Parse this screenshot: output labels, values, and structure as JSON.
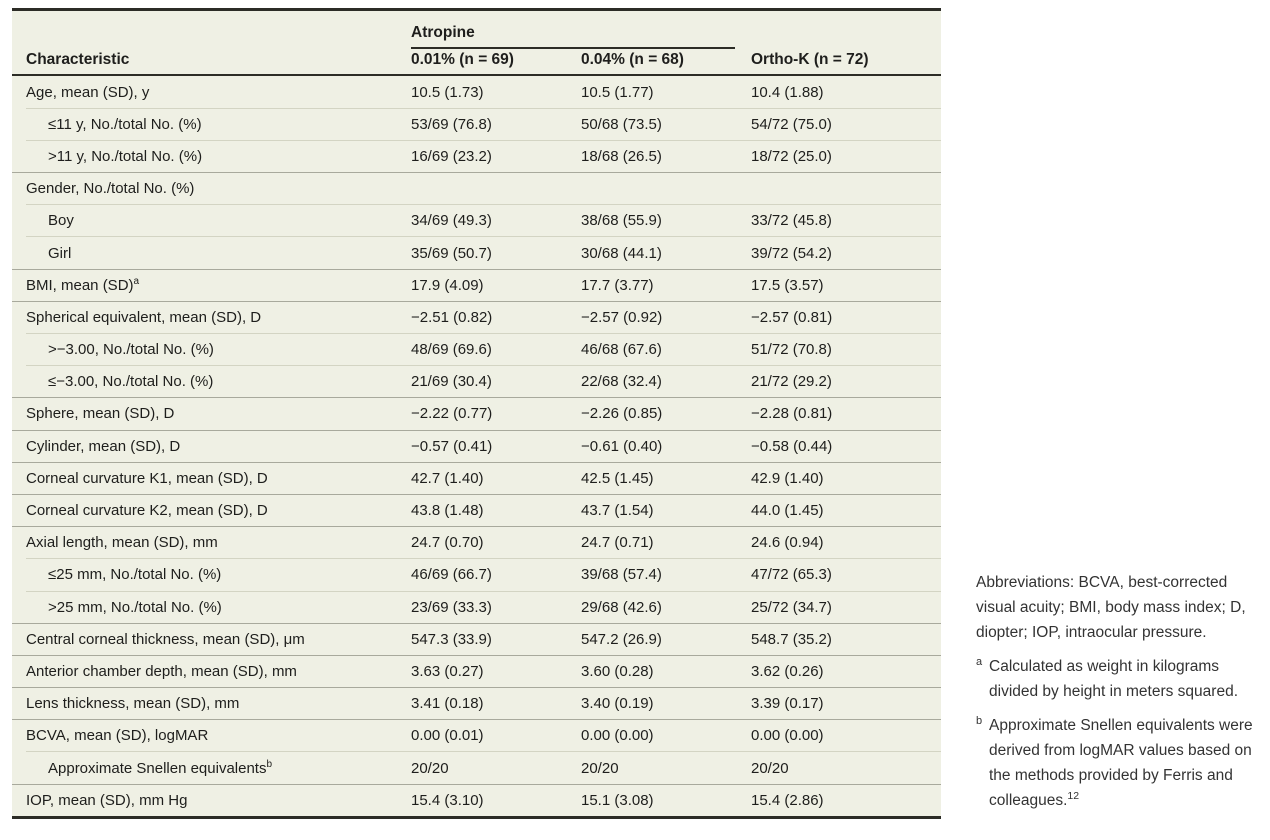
{
  "colors": {
    "table_background": "#eff0e4",
    "border_dark": "#2c2c26",
    "separator_full": "#a8a99c",
    "separator_indent": "#d3d4c3",
    "text": "#1e1e1c",
    "notes_text": "#333333",
    "page_background": "#ffffff"
  },
  "table": {
    "header": {
      "characteristic": "Characteristic",
      "group_label": "Atropine",
      "columns": [
        "0.01% (n = 69)",
        "0.04% (n = 68)",
        "Ortho-K (n = 72)"
      ]
    },
    "rows": [
      {
        "label": "Age, mean (SD), y",
        "sup": "",
        "indent": false,
        "sep": "none",
        "values": [
          "10.5 (1.73)",
          "10.5 (1.77)",
          "10.4 (1.88)"
        ]
      },
      {
        "label": "≤11 y, No./total No. (%)",
        "sup": "",
        "indent": true,
        "sep": "indent",
        "values": [
          "53/69 (76.8)",
          "50/68 (73.5)",
          "54/72 (75.0)"
        ]
      },
      {
        "label": ">11 y, No./total No. (%)",
        "sup": "",
        "indent": true,
        "sep": "indent",
        "values": [
          "16/69 (23.2)",
          "18/68 (26.5)",
          "18/72 (25.0)"
        ]
      },
      {
        "label": "Gender, No./total No. (%)",
        "sup": "",
        "indent": false,
        "sep": "full",
        "values": [
          "",
          "",
          ""
        ]
      },
      {
        "label": "Boy",
        "sup": "",
        "indent": true,
        "sep": "indent",
        "values": [
          "34/69 (49.3)",
          "38/68 (55.9)",
          "33/72 (45.8)"
        ]
      },
      {
        "label": "Girl",
        "sup": "",
        "indent": true,
        "sep": "indent",
        "values": [
          "35/69 (50.7)",
          "30/68 (44.1)",
          "39/72 (54.2)"
        ]
      },
      {
        "label": "BMI, mean (SD)",
        "sup": "a",
        "indent": false,
        "sep": "full",
        "values": [
          "17.9 (4.09)",
          "17.7 (3.77)",
          "17.5 (3.57)"
        ]
      },
      {
        "label": "Spherical equivalent, mean (SD), D",
        "sup": "",
        "indent": false,
        "sep": "full",
        "values": [
          "−2.51 (0.82)",
          "−2.57 (0.92)",
          "−2.57 (0.81)"
        ]
      },
      {
        "label": ">−3.00, No./total No. (%)",
        "sup": "",
        "indent": true,
        "sep": "indent",
        "values": [
          "48/69 (69.6)",
          "46/68 (67.6)",
          "51/72 (70.8)"
        ]
      },
      {
        "label": "≤−3.00, No./total No. (%)",
        "sup": "",
        "indent": true,
        "sep": "indent",
        "values": [
          "21/69 (30.4)",
          "22/68 (32.4)",
          "21/72 (29.2)"
        ]
      },
      {
        "label": "Sphere, mean (SD), D",
        "sup": "",
        "indent": false,
        "sep": "full",
        "values": [
          "−2.22 (0.77)",
          "−2.26 (0.85)",
          "−2.28 (0.81)"
        ]
      },
      {
        "label": "Cylinder, mean (SD), D",
        "sup": "",
        "indent": false,
        "sep": "full",
        "values": [
          "−0.57 (0.41)",
          "−0.61 (0.40)",
          "−0.58 (0.44)"
        ]
      },
      {
        "label": "Corneal curvature K1, mean (SD), D",
        "sup": "",
        "indent": false,
        "sep": "full",
        "values": [
          "42.7 (1.40)",
          "42.5 (1.45)",
          "42.9 (1.40)"
        ]
      },
      {
        "label": "Corneal curvature K2, mean (SD), D",
        "sup": "",
        "indent": false,
        "sep": "full",
        "values": [
          "43.8 (1.48)",
          "43.7 (1.54)",
          "44.0 (1.45)"
        ]
      },
      {
        "label": "Axial length, mean (SD), mm",
        "sup": "",
        "indent": false,
        "sep": "full",
        "values": [
          "24.7 (0.70)",
          "24.7 (0.71)",
          "24.6 (0.94)"
        ]
      },
      {
        "label": "≤25 mm, No./total No. (%)",
        "sup": "",
        "indent": true,
        "sep": "indent",
        "values": [
          "46/69 (66.7)",
          "39/68 (57.4)",
          "47/72 (65.3)"
        ]
      },
      {
        "label": ">25 mm, No./total No. (%)",
        "sup": "",
        "indent": true,
        "sep": "indent",
        "values": [
          "23/69 (33.3)",
          "29/68 (42.6)",
          "25/72 (34.7)"
        ]
      },
      {
        "label": "Central corneal thickness, mean (SD), μm",
        "sup": "",
        "indent": false,
        "sep": "full",
        "values": [
          "547.3 (33.9)",
          "547.2 (26.9)",
          "548.7 (35.2)"
        ]
      },
      {
        "label": "Anterior chamber depth, mean (SD), mm",
        "sup": "",
        "indent": false,
        "sep": "full",
        "values": [
          "3.63 (0.27)",
          "3.60 (0.28)",
          "3.62 (0.26)"
        ]
      },
      {
        "label": "Lens thickness, mean (SD), mm",
        "sup": "",
        "indent": false,
        "sep": "full",
        "values": [
          "3.41 (0.18)",
          "3.40 (0.19)",
          "3.39 (0.17)"
        ]
      },
      {
        "label": "BCVA, mean (SD), logMAR",
        "sup": "",
        "indent": false,
        "sep": "full",
        "values": [
          "0.00 (0.01)",
          "0.00 (0.00)",
          "0.00 (0.00)"
        ]
      },
      {
        "label": "Approximate Snellen equivalents",
        "sup": "b",
        "indent": true,
        "sep": "indent",
        "values": [
          "20/20",
          "20/20",
          "20/20"
        ]
      },
      {
        "label": "IOP, mean (SD), mm Hg",
        "sup": "",
        "indent": false,
        "sep": "full",
        "values": [
          "15.4 (3.10)",
          "15.1 (3.08)",
          "15.4 (2.86)"
        ]
      }
    ]
  },
  "notes": {
    "abbreviations": "Abbreviations: BCVA, best-corrected visual acuity; BMI, body mass index; D, diopter; IOP, intraocular pressure.",
    "footnotes": [
      {
        "marker": "a",
        "text": "Calculated as weight in kilograms divided by height in meters squared.",
        "ref": ""
      },
      {
        "marker": "b",
        "text": "Approximate Snellen equivalents were derived from logMAR values based on the methods provided by Ferris and colleagues.",
        "ref": "12"
      }
    ]
  }
}
